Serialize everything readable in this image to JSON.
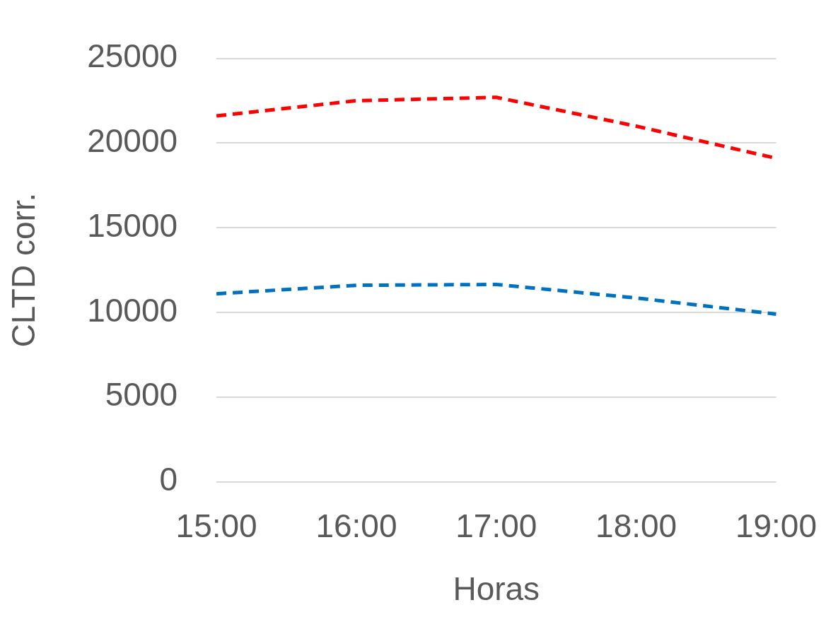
{
  "chart_data": {
    "type": "line",
    "xlabel": "Horas",
    "ylabel": "CLTD corr.",
    "categories": [
      "15:00",
      "16:00",
      "17:00",
      "18:00",
      "19:00"
    ],
    "series": [
      {
        "color": "#ff0000",
        "values": [
          21600,
          22500,
          22700,
          21000,
          19100
        ]
      },
      {
        "color": "#0070c0",
        "values": [
          11100,
          11600,
          11650,
          10850,
          9900
        ]
      }
    ],
    "ylim": [
      0,
      25000
    ],
    "yticks": [
      0,
      5000,
      10000,
      15000,
      20000,
      25000
    ],
    "grid": "y",
    "legend": false,
    "marker": "none",
    "line_style": "dashed"
  }
}
